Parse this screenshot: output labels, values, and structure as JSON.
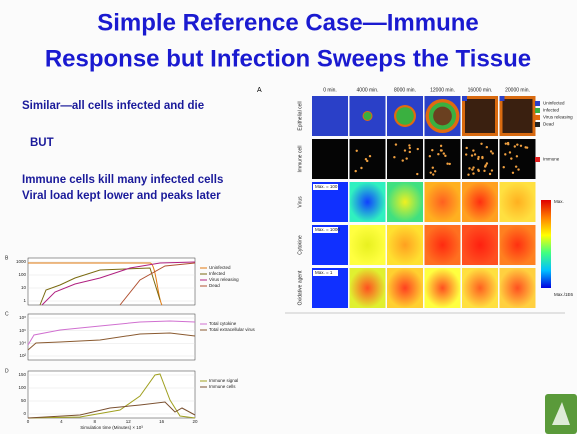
{
  "title": [
    "Simple Reference Case—Immune",
    "Response but Infection Sweeps the Tissue"
  ],
  "bullets": [
    "Similar—all cells infected and die",
    "BUT",
    "Immune cells kill many infected cells",
    "Viral load kept lower and peaks later"
  ],
  "figure_a": {
    "label": "A",
    "columns": [
      "0 min.",
      "4000 min.",
      "8000 min.",
      "12000 min.",
      "16000 min.",
      "20000 min."
    ],
    "rows": [
      {
        "label": "Epithelial cell"
      },
      {
        "label": "Immune cell"
      },
      {
        "label": "Virus",
        "max": "Max. = 100"
      },
      {
        "label": "Cytokine",
        "max": "Max. = 1000"
      },
      {
        "label": "Oxidative agent",
        "max": "Max. = 1"
      }
    ],
    "cell_legend": [
      "Uninfected",
      "Infected",
      "Virus releasing",
      "Dead"
    ],
    "immune_legend": "Immune",
    "colorbar": {
      "top": "Max.",
      "bottom": "Max./1E6"
    }
  },
  "panels": [
    {
      "label": "B",
      "yticks": [
        "1000",
        "100",
        "10",
        "1"
      ],
      "legend": [
        "Uninfected",
        "Infected",
        "Virus releasing",
        "Dead"
      ]
    },
    {
      "label": "C",
      "yticks": [
        "10⁸",
        "10⁶",
        "10⁴",
        "10²"
      ],
      "legend": [
        "Total cytokine",
        "Total extracellular virus"
      ]
    },
    {
      "label": "D",
      "yticks": [
        "150",
        "100",
        "50",
        "0"
      ],
      "legend": [
        "Immune signal",
        "Immune cells"
      ],
      "xticks": [
        "0",
        "4",
        "8",
        "12",
        "16",
        "20"
      ],
      "xlabel": "Simulation time (Minutes) × 10³"
    }
  ]
}
